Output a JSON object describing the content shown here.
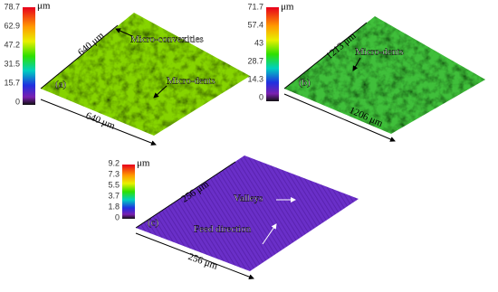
{
  "panels": [
    {
      "label": "(a)",
      "colorbar": {
        "unit": "μm",
        "ticks": [
          "78.7",
          "62.9",
          "47.2",
          "31.5",
          "15.7",
          "0"
        ]
      },
      "dims": [
        "640 μm",
        "640 μm"
      ],
      "annotations": [
        "Micro-convexities",
        "Micro-dents"
      ]
    },
    {
      "label": "(b)",
      "colorbar": {
        "unit": "μm",
        "ticks": [
          "71.7",
          "57.4",
          "43",
          "28.7",
          "14.3",
          "0"
        ]
      },
      "dims": [
        "1213 μm",
        "1206 μm"
      ],
      "annotations": [
        "Micro-dents"
      ]
    },
    {
      "label": "(c)",
      "colorbar": {
        "unit": "μm",
        "ticks": [
          "9.2",
          "7.3",
          "5.5",
          "3.7",
          "1.8",
          "0"
        ]
      },
      "dims": [
        "256 μm",
        "256 μm"
      ],
      "annotations": [
        "Valleys",
        "Feed direction"
      ]
    }
  ]
}
